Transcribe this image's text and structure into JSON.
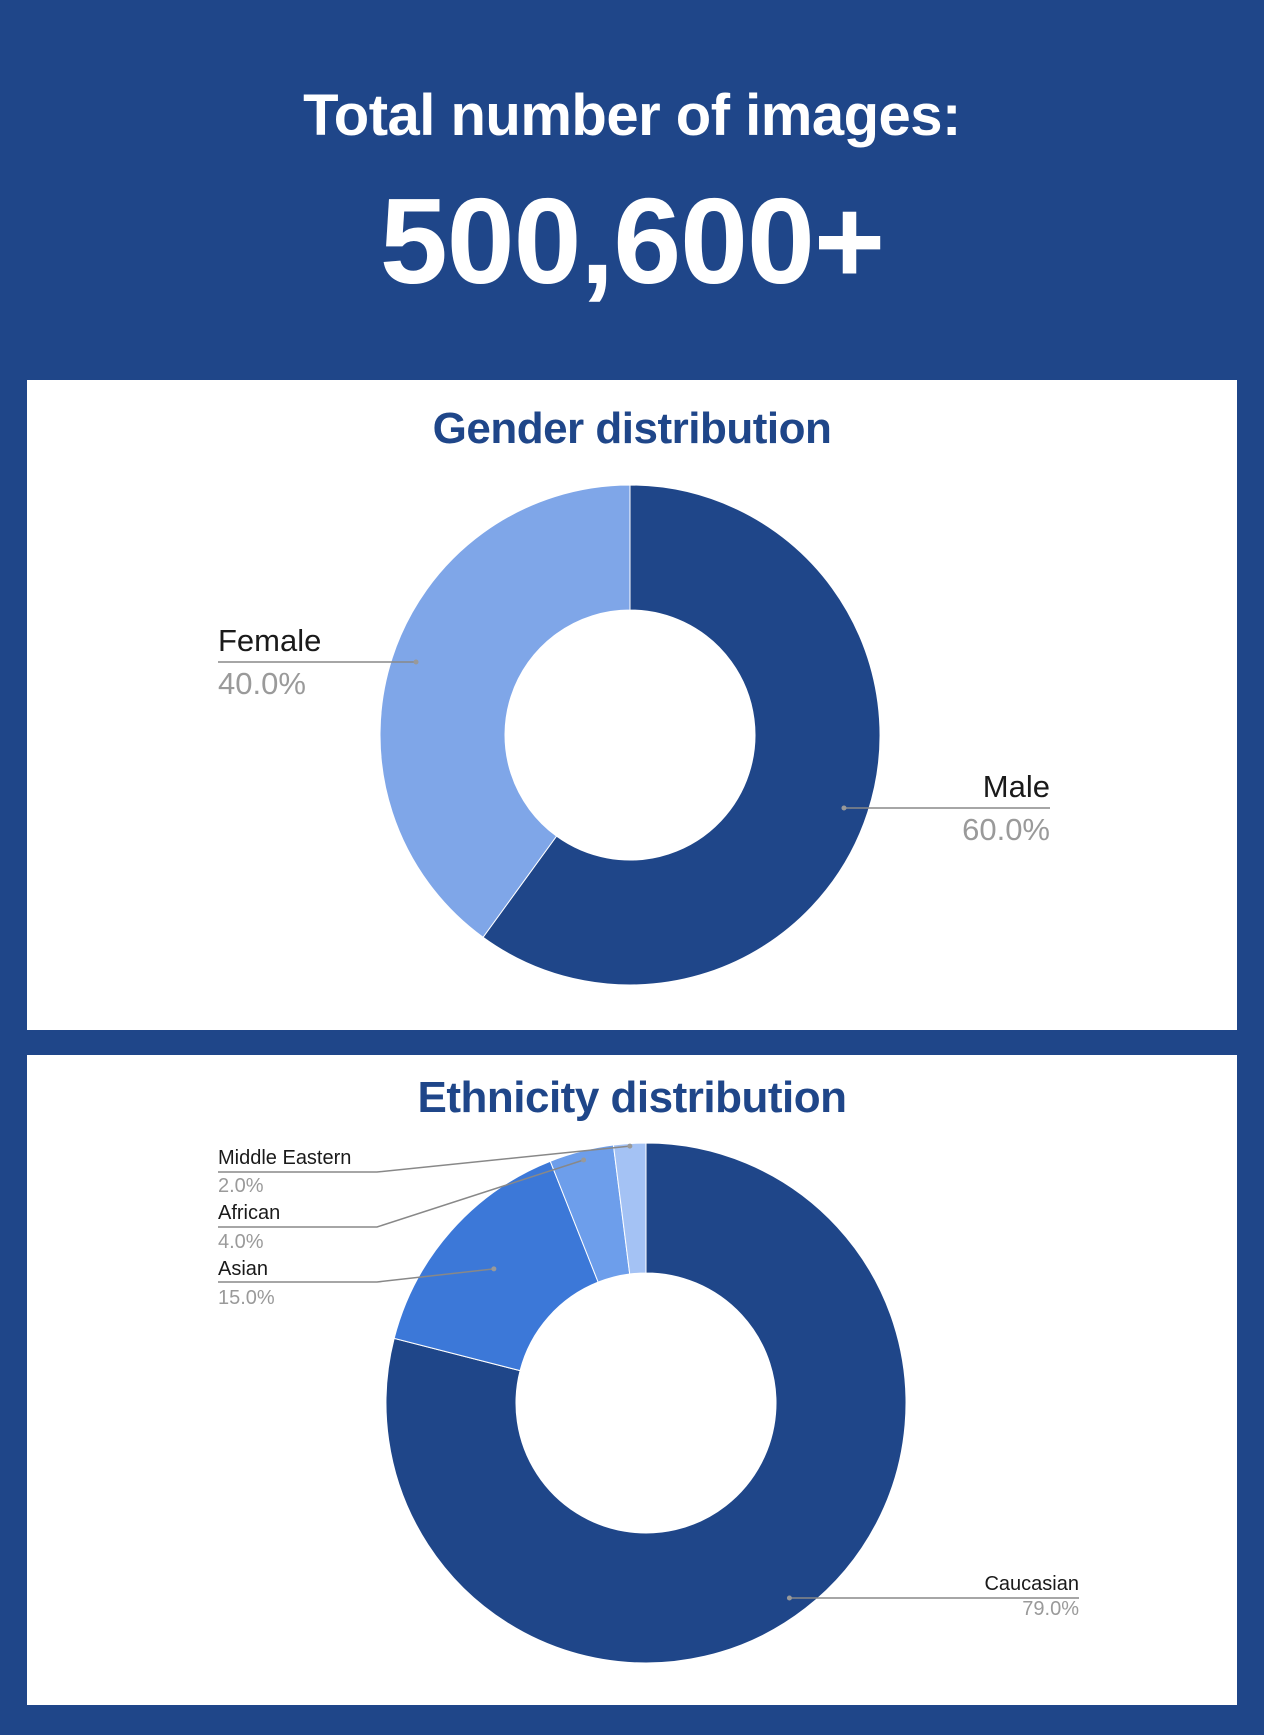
{
  "header": {
    "title": "Total number of images:",
    "total": "500,600+"
  },
  "colors": {
    "background": "#1f4689",
    "panel": "#ffffff",
    "title_text": "#1f4689"
  },
  "chart_data": [
    {
      "type": "pie",
      "donut": true,
      "title": "Gender distribution",
      "slices": [
        {
          "label": "Male",
          "value": 60.0,
          "value_label": "60.0%",
          "color": "#1f4689"
        },
        {
          "label": "Female",
          "value": 40.0,
          "value_label": "40.0%",
          "color": "#7fa6e8"
        }
      ]
    },
    {
      "type": "pie",
      "donut": true,
      "title": "Ethnicity distribution",
      "slices": [
        {
          "label": "Caucasian",
          "value": 79.0,
          "value_label": "79.0%",
          "color": "#1f4689"
        },
        {
          "label": "Asian",
          "value": 15.0,
          "value_label": "15.0%",
          "color": "#3c78d8"
        },
        {
          "label": "African",
          "value": 4.0,
          "value_label": "4.0%",
          "color": "#6d9eeb"
        },
        {
          "label": "Middle Eastern",
          "value": 2.0,
          "value_label": "2.0%",
          "color": "#a4c2f4"
        }
      ]
    }
  ]
}
